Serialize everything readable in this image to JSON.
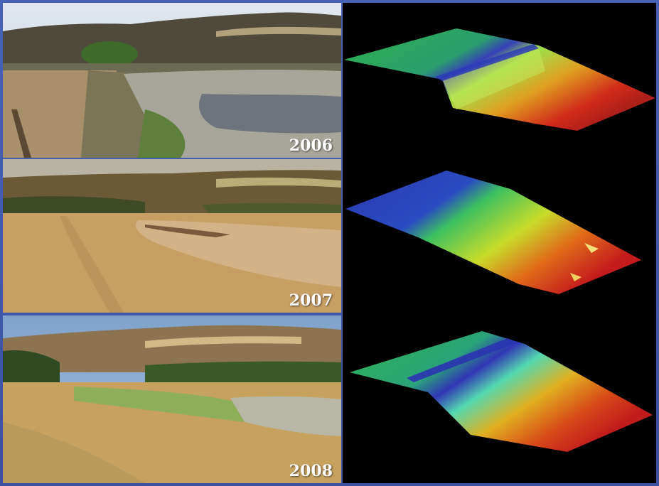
{
  "panels": [
    {
      "year_label": "2006"
    },
    {
      "year_label": "2007"
    },
    {
      "year_label": "2008"
    }
  ],
  "colors": {
    "background": "#3f5aa8",
    "model_background": "#000000",
    "elevation_low": "#2b34b8",
    "elevation_mid": "#3fcf4f",
    "elevation_high": "#d8e020",
    "elevation_top": "#cc1a1a"
  }
}
